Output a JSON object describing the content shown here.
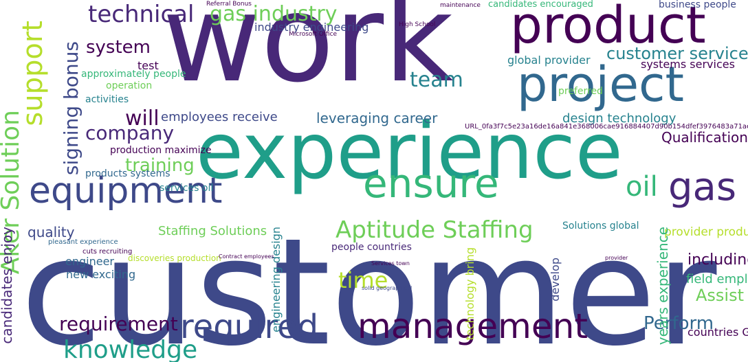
{
  "palette": {
    "dark_purple": "#440154",
    "purple": "#482878",
    "indigo": "#3e4989",
    "blue": "#31688e",
    "teal_blue": "#26828e",
    "teal": "#1f9e89",
    "green": "#35b779",
    "light_green": "#6ece58",
    "lime": "#b5de2b",
    "yellow": "#fde725"
  },
  "words": [
    "work",
    "customer",
    "experience",
    "product",
    "project",
    "management",
    "support",
    "required",
    "ensure",
    "equipment",
    "technical",
    "gas industry",
    "gas",
    "oil",
    "Aker Solution",
    "customer service",
    "Qualification",
    "Aptitude Staffing",
    "system",
    "signing bonus",
    "time",
    "team",
    "will",
    "company",
    "training",
    "requirement",
    "knowledge",
    "Perform",
    "Assist",
    "design technology",
    "employees receive",
    "leveraging career",
    "Staffing Solutions",
    "engineer",
    "new exciting",
    "quality",
    "industry engineering",
    "candidates encouraged",
    "business people",
    "global provider",
    "systems services",
    "Solutions global",
    "provider product",
    "including",
    "field employ",
    "countries Go",
    "people countries",
    "approximately people",
    "operation",
    "activities",
    "production maximize",
    "products systems",
    "services oil",
    "URL_0fa3f7c5e23a16de16a841e368006cae916884407d90b154dfef3976483a71ae",
    "test",
    "engineering design",
    "technology bring",
    "years experience",
    "candidates enjoy",
    "preferred",
    "develop",
    "discoveries production",
    "pleasant experience",
    "cuts recruiting",
    "Services town",
    "Contract employees",
    "provider",
    "solid geographical",
    "Microsoft Office",
    "High School",
    "Referral Bonus",
    "maintenance"
  ]
}
